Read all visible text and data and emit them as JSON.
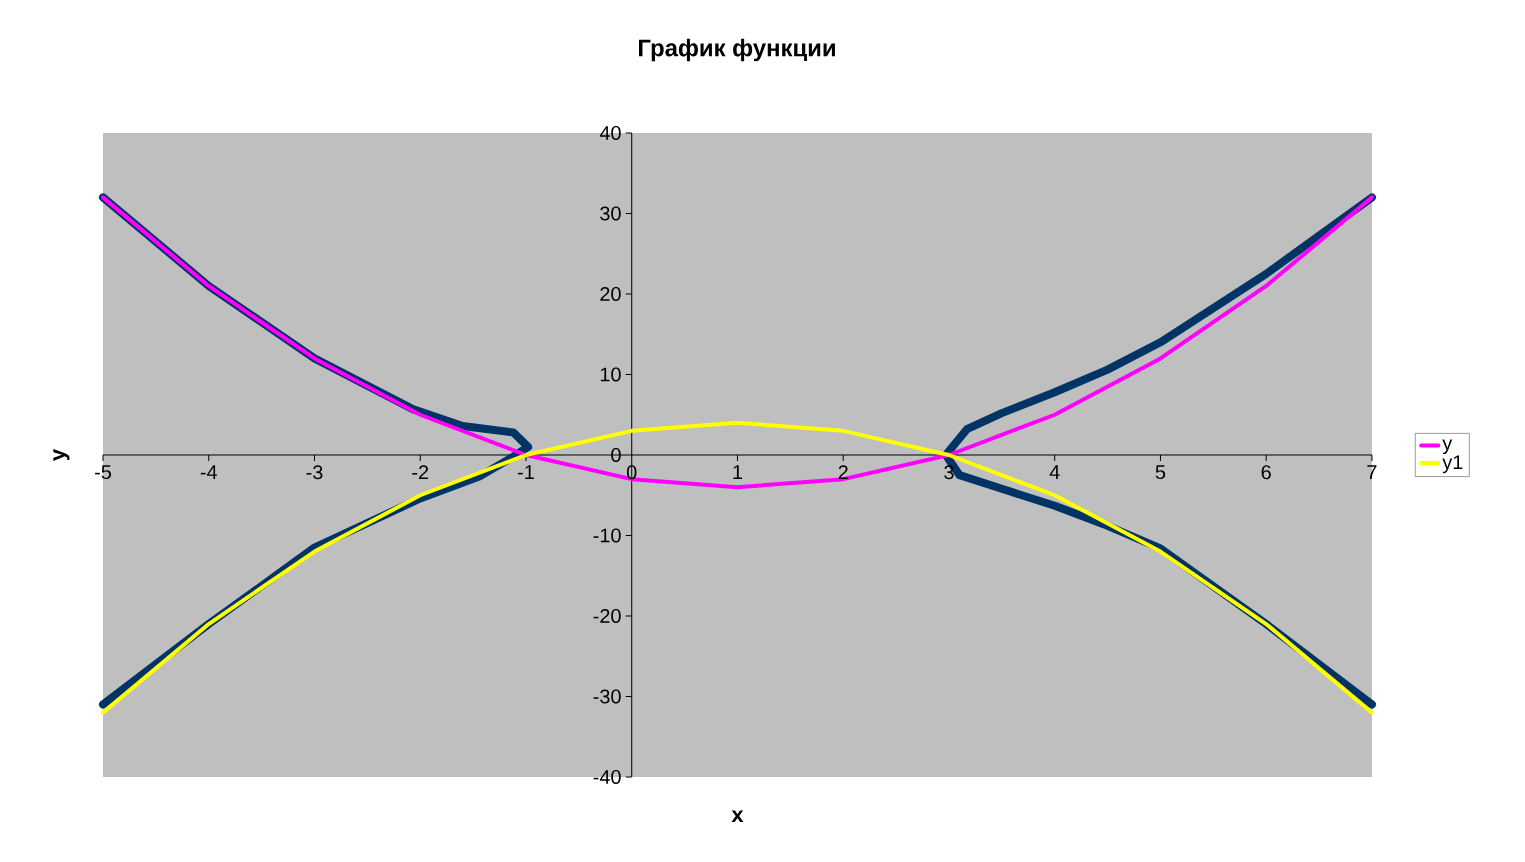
{
  "chart_data": {
    "type": "line",
    "title": "График функции",
    "xlabel": "x",
    "ylabel": "y",
    "xlim": [
      -5,
      7
    ],
    "xticks": [
      -5,
      -4,
      -3,
      -2,
      -1,
      0,
      1,
      2,
      3,
      4,
      5,
      6,
      7
    ],
    "ylim": [
      -40,
      40
    ],
    "yticks": [
      -40,
      -30,
      -20,
      -10,
      0,
      10,
      20,
      30,
      40
    ],
    "grid": false,
    "legend": "right",
    "marker": "none",
    "line_style": "solid",
    "series": [
      {
        "name": "y",
        "color": "#ff00ff",
        "x": [
          -5,
          -4,
          -3,
          -2,
          -1,
          0,
          1,
          2,
          3,
          4,
          5,
          6,
          7
        ],
        "values": [
          32,
          21,
          12,
          5,
          0,
          -3,
          -4,
          -3,
          0,
          5,
          12,
          21,
          32
        ]
      },
      {
        "name": "y1",
        "color": "#ffff00",
        "x": [
          -5,
          -4,
          -3,
          -2,
          -1,
          0,
          1,
          2,
          3,
          4,
          5,
          6,
          7
        ],
        "values": [
          -32,
          -21,
          -12,
          -5,
          0,
          3,
          4,
          3,
          0,
          -5,
          -12,
          -21,
          -32
        ]
      },
      {
        "color": "#003366",
        "x": [
          -5,
          -4,
          -3,
          -2,
          -1.43,
          -1.12,
          -0.98,
          -1.12,
          -1.6,
          -2.07,
          -3,
          -4,
          -5
        ],
        "values": [
          -31,
          -21,
          -11.5,
          -5.4,
          -2.6,
          -0.2,
          1,
          2.8,
          3.6,
          5.7,
          12,
          21,
          32
        ]
      },
      {
        "color": "#003366",
        "x": [
          7,
          6,
          5,
          4.5,
          4,
          3.5,
          3.17,
          2.97,
          3.1,
          3.5,
          4,
          4.5,
          5,
          6,
          7
        ],
        "values": [
          32,
          22.5,
          14,
          10.6,
          7.8,
          5.2,
          3.2,
          0,
          -2.5,
          -4.2,
          -6.3,
          -8.8,
          -11.6,
          -21,
          -31
        ]
      }
    ]
  }
}
